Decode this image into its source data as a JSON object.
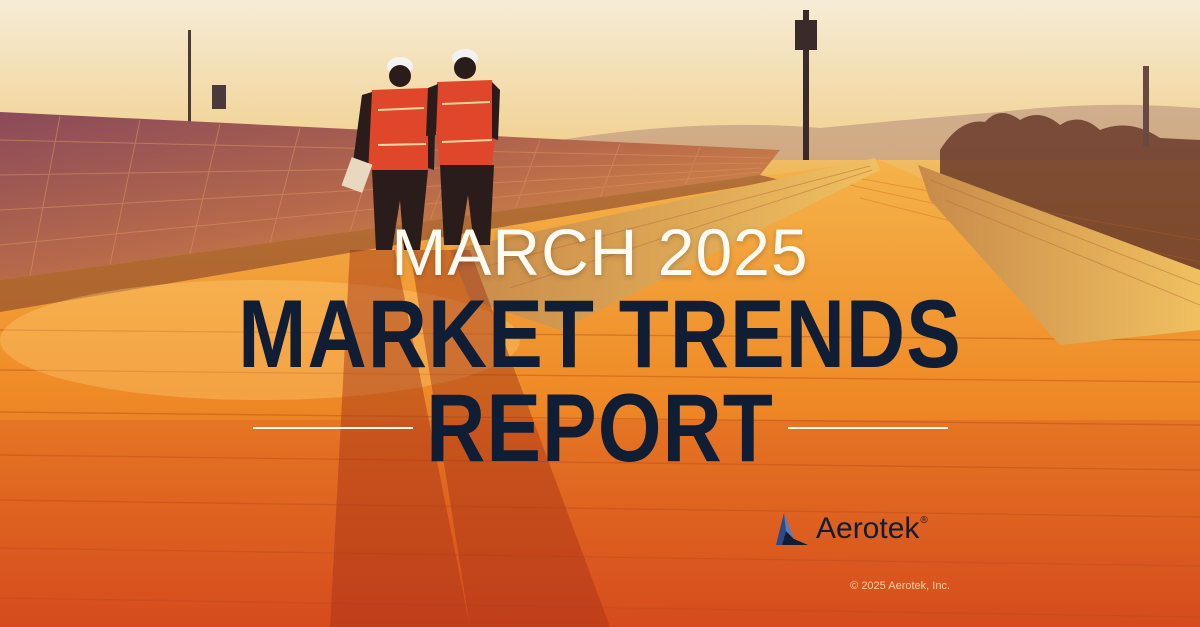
{
  "headline": {
    "subtitle": "MARCH 2025",
    "title_line_1": "MARKET TRENDS",
    "title_line_2": "REPORT"
  },
  "brand": {
    "name": "Aerotek",
    "registered_mark": "®",
    "logo_icon": "aerotek-arrow-logo"
  },
  "footer": {
    "copyright": "© 2025 Aerotek, Inc."
  },
  "colors": {
    "navy_text": "#0f1d35",
    "light_text": "#fffaf2",
    "sky_top": "#f4e6c8",
    "roof_orange": "#ee7a1a",
    "roof_red": "#d94a1c",
    "vest_red": "#e0462a"
  },
  "scene": {
    "description_icon": "photo-background",
    "subjects": [
      "worker-silhouette",
      "worker-silhouette"
    ]
  }
}
